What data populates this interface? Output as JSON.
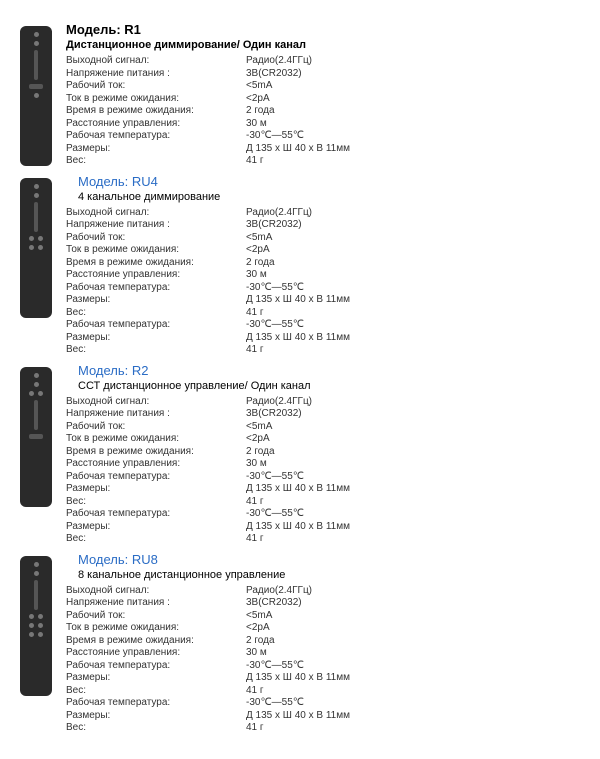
{
  "labels": {
    "output_signal": "Выходной сигнал:",
    "supply_voltage": "Напряжение питания :",
    "working_current": "Рабочий ток:",
    "standby_current": "Ток в режиме ожидания:",
    "standby_time": "Время в режиме ожидания:",
    "control_distance": "Расстояние управления:",
    "working_temp": "Рабочая температура:",
    "dimensions": "Размеры:",
    "weight": "Вес:"
  },
  "models": [
    {
      "title": "Модель: R1",
      "title_style": "black",
      "subtitle": "Дистанционное диммирование/ Один канал",
      "subtitle_style": "bold",
      "specs": [
        {
          "label": "output_signal",
          "value": "Радио(2.4ГГц)"
        },
        {
          "label": "supply_voltage",
          "value": "3В(CR2032)"
        },
        {
          "label": "working_current",
          "value": "<5mA"
        },
        {
          "label": "standby_current",
          "value": "<2рA"
        },
        {
          "label": "standby_time",
          "value": "2 года"
        },
        {
          "label": "control_distance",
          "value": "30 м"
        },
        {
          "label": "working_temp",
          "value": "-30℃—55℃"
        },
        {
          "label": "dimensions",
          "value": "Д 135 x Ш 40 x В 11мм"
        },
        {
          "label": "weight",
          "value": "41 г"
        }
      ]
    },
    {
      "title": "Модель: RU4",
      "title_style": "blue",
      "subtitle": "4 канальное диммирование",
      "subtitle_style": "indent",
      "specs": [
        {
          "label": "output_signal",
          "value": "Радио(2.4ГГц)"
        },
        {
          "label": "supply_voltage",
          "value": "3В(CR2032)"
        },
        {
          "label": "working_current",
          "value": "<5mA"
        },
        {
          "label": "standby_current",
          "value": "<2рA"
        },
        {
          "label": "standby_time",
          "value": "2 года"
        },
        {
          "label": "control_distance",
          "value": "30 м"
        },
        {
          "label": "working_temp",
          "value": "-30℃—55℃"
        },
        {
          "label": "dimensions",
          "value": "Д 135 x Ш 40 x В 11мм"
        },
        {
          "label": "weight",
          "value": "41 г"
        },
        {
          "label": "working_temp",
          "value": "-30℃—55℃"
        },
        {
          "label": "dimensions",
          "value": "Д 135 x Ш 40 x В 11мм"
        },
        {
          "label": "weight",
          "value": "41 г"
        }
      ]
    },
    {
      "title": "Модель: R2",
      "title_style": "blue",
      "subtitle": "ССТ дистанционное управление/ Один канал",
      "subtitle_style": "indent",
      "specs": [
        {
          "label": "output_signal",
          "value": "Радио(2.4ГГц)"
        },
        {
          "label": "supply_voltage",
          "value": "3В(CR2032)"
        },
        {
          "label": "working_current",
          "value": "<5mA"
        },
        {
          "label": "standby_current",
          "value": "<2рA"
        },
        {
          "label": "standby_time",
          "value": "2 года"
        },
        {
          "label": "control_distance",
          "value": "30 м"
        },
        {
          "label": "working_temp",
          "value": "-30℃—55℃"
        },
        {
          "label": "dimensions",
          "value": "Д 135 x Ш 40 x В 11мм"
        },
        {
          "label": "weight",
          "value": "41 г"
        },
        {
          "label": "working_temp",
          "value": "-30℃—55℃"
        },
        {
          "label": "dimensions",
          "value": "Д 135 x Ш 40 x В 11мм"
        },
        {
          "label": "weight",
          "value": "41 г"
        }
      ]
    },
    {
      "title": "Модель: RU8",
      "title_style": "blue",
      "subtitle": "8 канальное дистанционное управление",
      "subtitle_style": "indent",
      "specs": [
        {
          "label": "output_signal",
          "value": "Радио(2.4ГГц)"
        },
        {
          "label": "supply_voltage",
          "value": "3В(CR2032)"
        },
        {
          "label": "working_current",
          "value": "<5mA"
        },
        {
          "label": "standby_current",
          "value": "<2рA"
        },
        {
          "label": "standby_time",
          "value": "2 года"
        },
        {
          "label": "control_distance",
          "value": "30 м"
        },
        {
          "label": "working_temp",
          "value": "-30℃—55℃"
        },
        {
          "label": "dimensions",
          "value": "Д 135 x Ш 40 x В 11мм"
        },
        {
          "label": "weight",
          "value": "41 г"
        },
        {
          "label": "working_temp",
          "value": "-30℃—55℃"
        },
        {
          "label": "dimensions",
          "value": "Д 135 x Ш 40 x В 11мм"
        },
        {
          "label": "weight",
          "value": "41 г"
        }
      ]
    }
  ]
}
